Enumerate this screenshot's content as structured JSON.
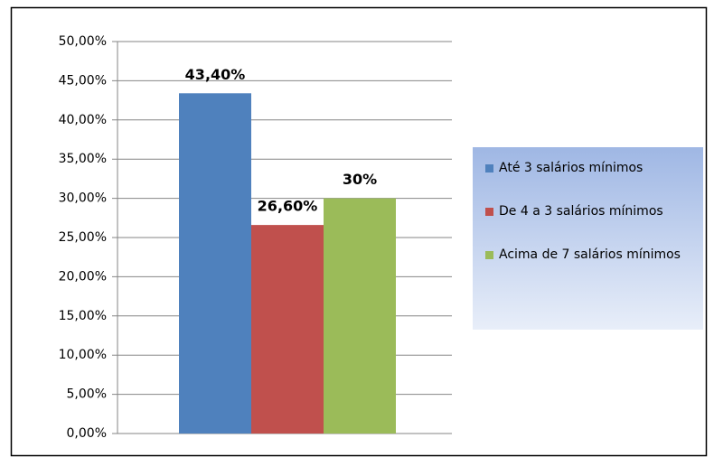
{
  "chart_data": {
    "type": "bar",
    "categories": [
      null
    ],
    "series": [
      {
        "name": "Até 3 salários mínimos",
        "color": "#4f81bd",
        "values": [
          43.4
        ],
        "value_labels": [
          "43,40%"
        ]
      },
      {
        "name": "De 4 a 3 salários mínimos",
        "color": "#c0504d",
        "values": [
          26.6
        ],
        "value_labels": [
          "26,60%"
        ]
      },
      {
        "name": "Acima de 7 salários mínimos",
        "color": "#9bbb59",
        "values": [
          30
        ],
        "value_labels": [
          "30%"
        ]
      }
    ],
    "ylim": [
      0,
      50
    ],
    "yticks": [
      {
        "value": 0,
        "label": "0,00%"
      },
      {
        "value": 5,
        "label": "5,00%"
      },
      {
        "value": 10,
        "label": "10,00%"
      },
      {
        "value": 15,
        "label": "15,00%"
      },
      {
        "value": 20,
        "label": "20,00%"
      },
      {
        "value": 25,
        "label": "25,00%"
      },
      {
        "value": 30,
        "label": "30,00%"
      },
      {
        "value": 35,
        "label": "35,00%"
      },
      {
        "value": 40,
        "label": "40,00%"
      },
      {
        "value": 45,
        "label": "45,00%"
      },
      {
        "value": 50,
        "label": "50,00%"
      }
    ],
    "grid": true,
    "legend": "right"
  }
}
